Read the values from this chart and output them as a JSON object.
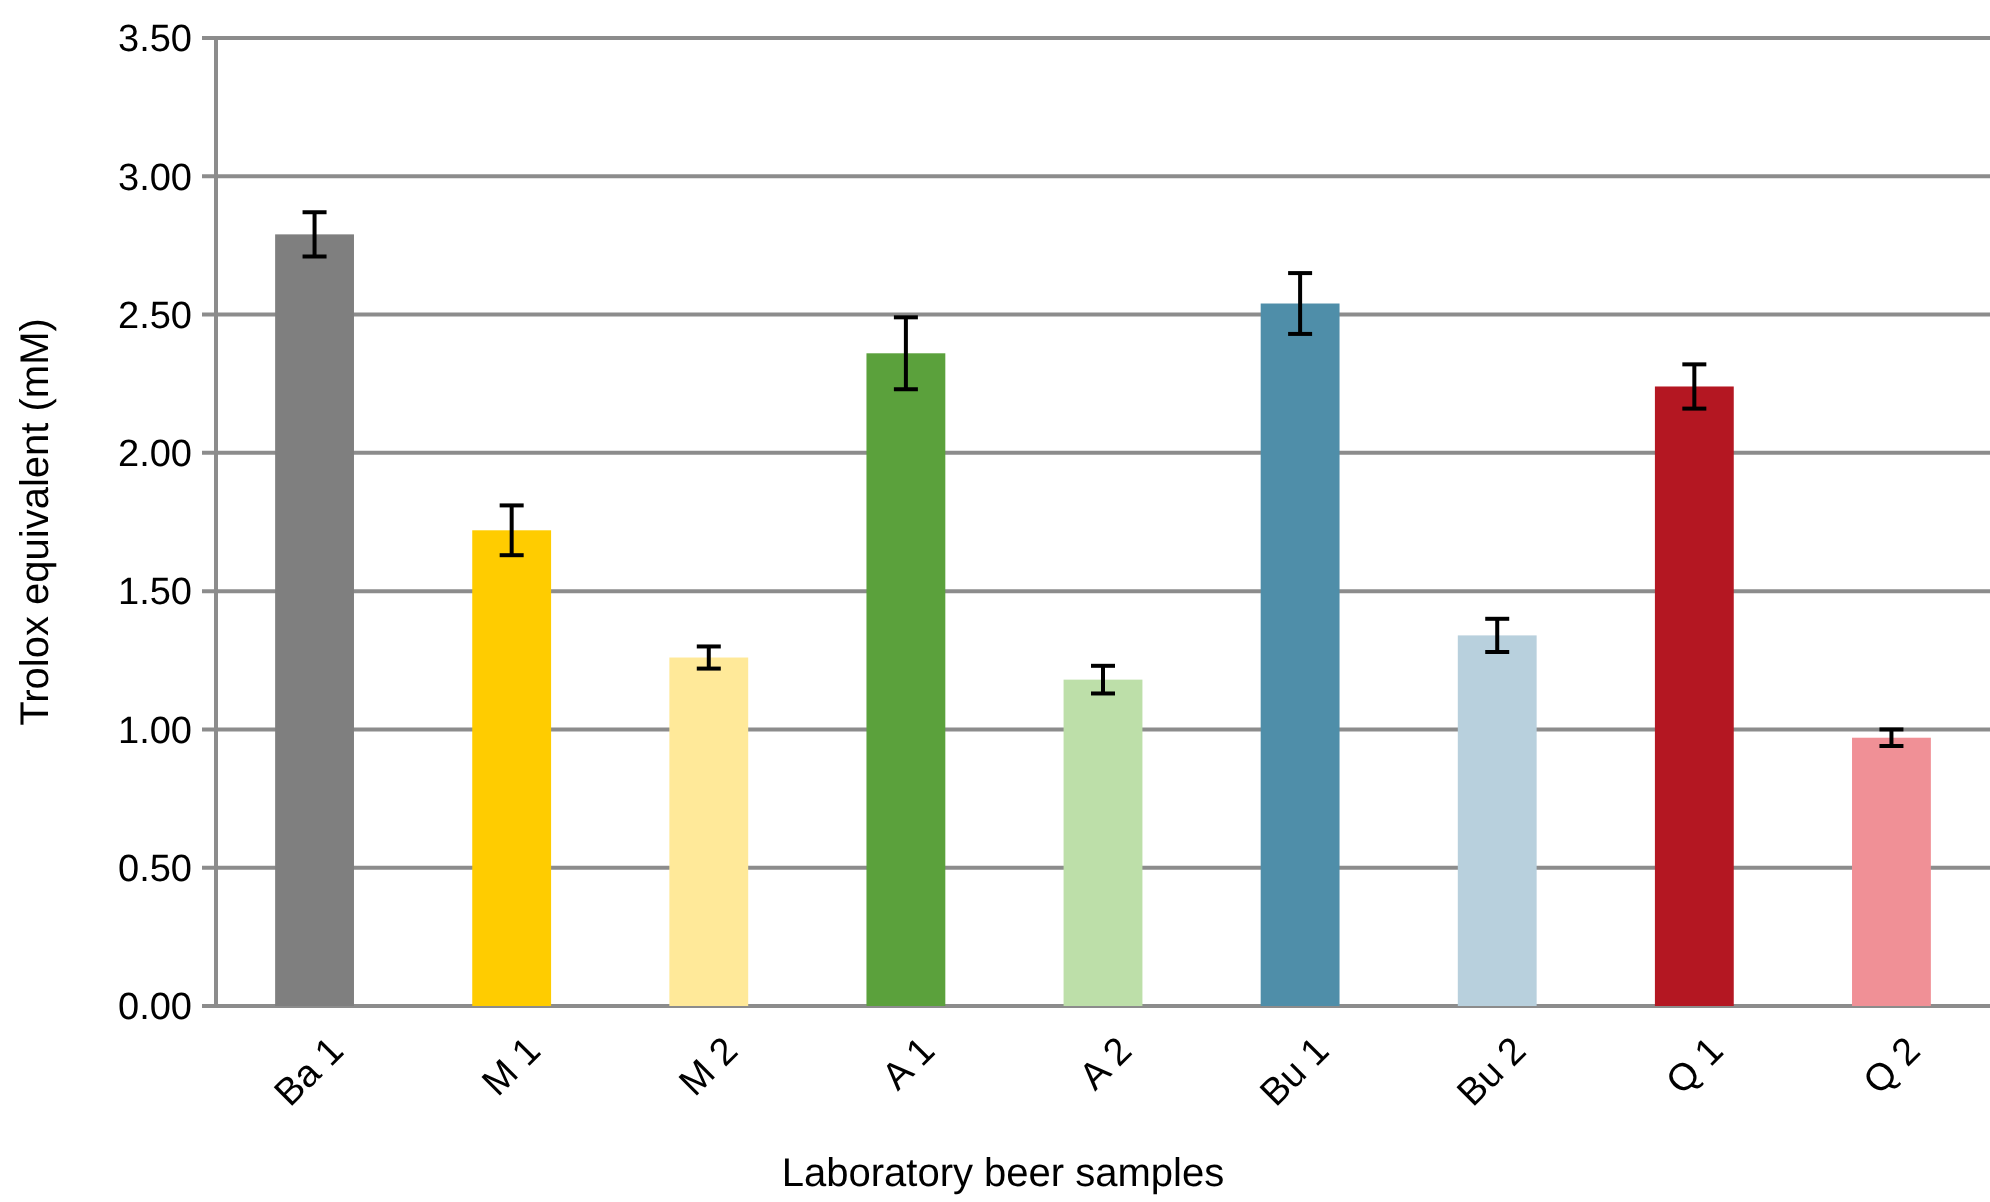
{
  "chart_data": {
    "type": "bar",
    "xlabel": "Laboratory beer samples",
    "ylabel": "Trolox equivalent (mM)",
    "categories": [
      "Ba 1",
      "M 1",
      "M 2",
      "A 1",
      "A 2",
      "Bu 1",
      "Bu 2",
      "Q 1",
      "Q 2"
    ],
    "values": [
      2.79,
      1.72,
      1.26,
      2.36,
      1.18,
      2.54,
      1.34,
      2.24,
      0.97
    ],
    "errors": [
      0.08,
      0.09,
      0.04,
      0.13,
      0.05,
      0.11,
      0.06,
      0.08,
      0.03
    ],
    "colors": [
      "#7f7f7f",
      "#ffcc00",
      "#ffe999",
      "#5ba13c",
      "#bddfa9",
      "#4f8ea9",
      "#b8d0dd",
      "#b41722",
      "#f09096"
    ],
    "ylim": [
      0,
      3.5
    ],
    "yticks": [
      {
        "value": 0,
        "label": "0.00"
      },
      {
        "value": 0.5,
        "label": "0.50"
      },
      {
        "value": 1,
        "label": "1.00"
      },
      {
        "value": 1.5,
        "label": "1.50"
      },
      {
        "value": 2,
        "label": "2.00"
      },
      {
        "value": 2.5,
        "label": "2.50"
      },
      {
        "value": 3,
        "label": "3.00"
      },
      {
        "value": 3.5,
        "label": "3.50"
      }
    ],
    "grid": "y"
  }
}
